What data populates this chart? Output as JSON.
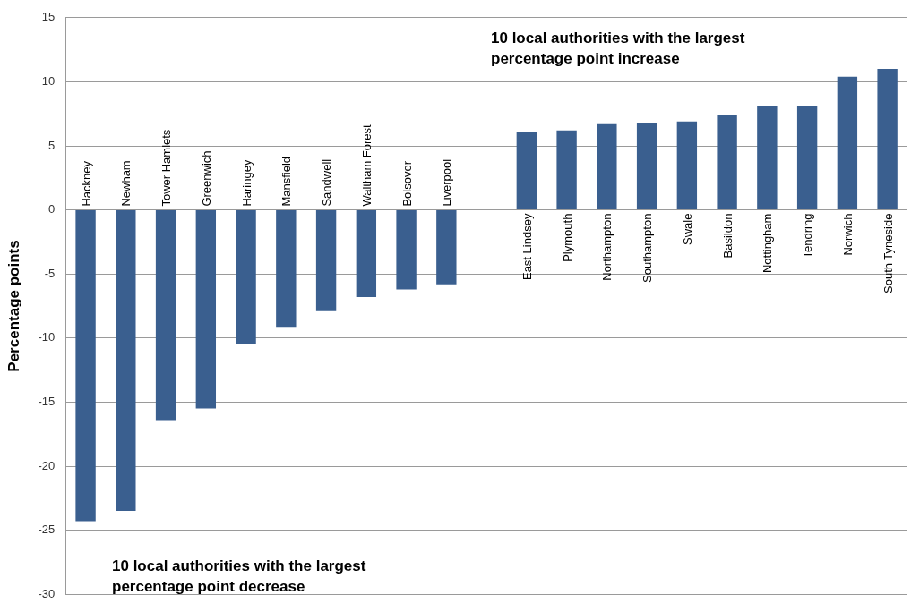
{
  "chart_data": {
    "type": "bar",
    "ylabel": "Percentage points",
    "categories": [
      "Hackney",
      "Newham",
      "Tower Hamlets",
      "Greenwich",
      "Haringey",
      "Mansfield",
      "Sandwell",
      "Waltham Forest",
      "Bolsover",
      "Liverpool",
      null,
      "East Lindsey",
      "Plymouth",
      "Northampton",
      "Southampton",
      "Swale",
      "Basildon",
      "Nottingham",
      "Tendring",
      "Norwich",
      "South Tyneside"
    ],
    "values": [
      -24.3,
      -23.5,
      -16.4,
      -15.5,
      -10.5,
      -9.2,
      -7.9,
      -6.8,
      -6.2,
      -5.8,
      null,
      6.1,
      6.2,
      6.7,
      6.8,
      6.9,
      7.4,
      8.1,
      8.1,
      10.4,
      11.0
    ],
    "color": "#3a5f8f",
    "ylim": [
      -30,
      15
    ],
    "yticks": [
      -30,
      -25,
      -20,
      -15,
      -10,
      -5,
      0,
      5,
      10,
      15
    ],
    "grid": "y",
    "legend": false,
    "tick_labels": "y",
    "annotations": [
      "10 local authorities with the largest percentage point increase",
      "10 local authorities with the largest percentage point decrease"
    ]
  }
}
